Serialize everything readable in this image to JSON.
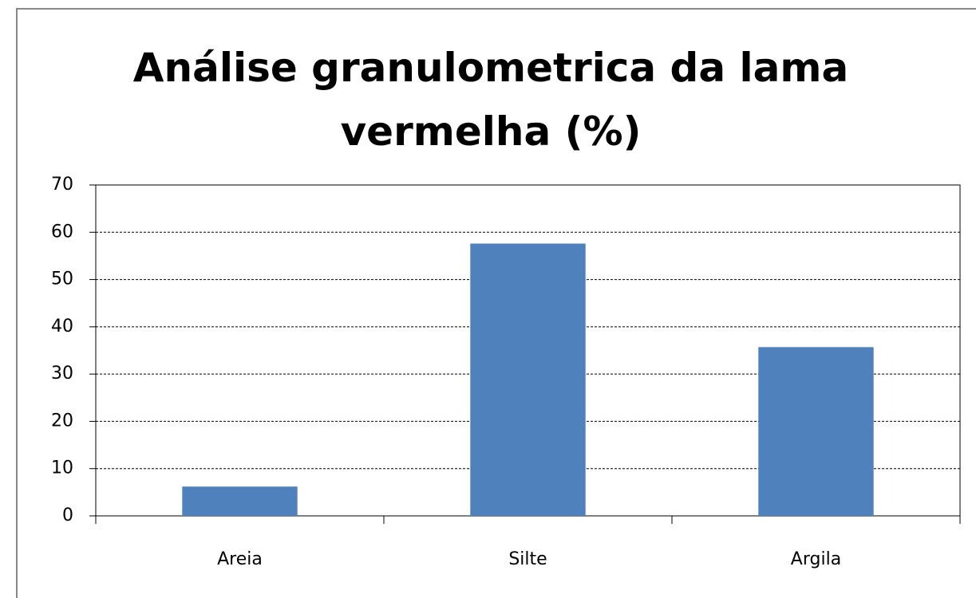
{
  "chart_data": {
    "type": "bar",
    "title": "Análise granulometrica da lama vermelha (%)",
    "categories": [
      "Areia",
      "Silte",
      "Argila"
    ],
    "values": [
      6.2,
      57.6,
      35.7
    ],
    "color": "#4f81bd",
    "ylim": [
      0,
      70
    ],
    "yticks": [
      0,
      10,
      20,
      30,
      40,
      50,
      60,
      70
    ],
    "grid": true
  }
}
